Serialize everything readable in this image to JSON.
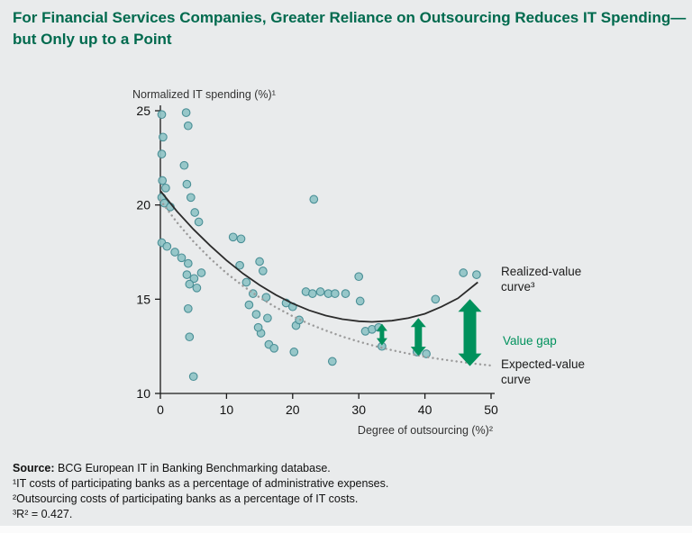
{
  "header": {
    "title": "For Financial Services Companies, Greater Reliance on Outsourcing Reduces IT Spending—but Only up to a Point"
  },
  "chart_data": {
    "type": "scatter",
    "xlabel": "Degree of outsourcing (%)²",
    "ylabel": "Normalized IT spending (%)¹",
    "xlim": [
      0,
      50
    ],
    "ylim": [
      10,
      25
    ],
    "x_ticks": [
      0,
      10,
      20,
      30,
      40,
      50
    ],
    "y_ticks": [
      10,
      15,
      20,
      25
    ],
    "grid": false,
    "colors": {
      "point_fill": "#8fc3c6",
      "point_stroke": "#4a8f96",
      "realized": "#2b2b2b",
      "expected": "#9b9b9b",
      "arrow": "#00915c",
      "title_green": "#006a4e"
    },
    "points": [
      [
        0.2,
        24.8
      ],
      [
        0.4,
        23.6
      ],
      [
        3.9,
        24.9
      ],
      [
        4.2,
        24.2
      ],
      [
        0.2,
        22.7
      ],
      [
        3.6,
        22.1
      ],
      [
        0.3,
        21.3
      ],
      [
        0.8,
        20.9
      ],
      [
        0.2,
        20.4
      ],
      [
        0.6,
        20.1
      ],
      [
        1.5,
        19.9
      ],
      [
        4.0,
        21.1
      ],
      [
        4.6,
        20.4
      ],
      [
        5.2,
        19.6
      ],
      [
        5.8,
        19.1
      ],
      [
        0.2,
        18.0
      ],
      [
        1.0,
        17.8
      ],
      [
        2.2,
        17.5
      ],
      [
        3.2,
        17.2
      ],
      [
        4.2,
        16.9
      ],
      [
        4.0,
        16.3
      ],
      [
        5.1,
        16.1
      ],
      [
        6.2,
        16.4
      ],
      [
        4.4,
        15.8
      ],
      [
        5.5,
        15.6
      ],
      [
        4.2,
        14.5
      ],
      [
        4.4,
        13.0
      ],
      [
        5.0,
        10.9
      ],
      [
        11.0,
        18.3
      ],
      [
        12.2,
        18.2
      ],
      [
        12.0,
        16.8
      ],
      [
        13.0,
        15.9
      ],
      [
        14.0,
        15.3
      ],
      [
        13.4,
        14.7
      ],
      [
        14.5,
        14.2
      ],
      [
        15.0,
        17.0
      ],
      [
        15.5,
        16.5
      ],
      [
        16.0,
        15.1
      ],
      [
        16.2,
        14.0
      ],
      [
        15.2,
        13.2
      ],
      [
        16.4,
        12.6
      ],
      [
        17.2,
        12.4
      ],
      [
        14.8,
        13.5
      ],
      [
        19.0,
        14.8
      ],
      [
        20.0,
        14.6
      ],
      [
        20.5,
        13.6
      ],
      [
        21.0,
        13.9
      ],
      [
        22.0,
        15.4
      ],
      [
        23.2,
        20.3
      ],
      [
        23.0,
        15.3
      ],
      [
        24.2,
        15.4
      ],
      [
        25.4,
        15.3
      ],
      [
        20.2,
        12.2
      ],
      [
        26.0,
        11.7
      ],
      [
        26.4,
        15.3
      ],
      [
        28.0,
        15.3
      ],
      [
        30.0,
        16.2
      ],
      [
        30.2,
        14.9
      ],
      [
        31.0,
        13.3
      ],
      [
        32.0,
        13.4
      ],
      [
        33.0,
        13.5
      ],
      [
        33.5,
        12.5
      ],
      [
        38.8,
        12.2
      ],
      [
        40.2,
        12.1
      ],
      [
        41.6,
        15.0
      ],
      [
        45.8,
        16.4
      ],
      [
        47.8,
        16.3
      ]
    ],
    "realized_curve": {
      "label": "Realized-value curve³",
      "points": [
        [
          0,
          20.75
        ],
        [
          2.5,
          19.67
        ],
        [
          5,
          18.71
        ],
        [
          7.5,
          17.85
        ],
        [
          10,
          17.06
        ],
        [
          12.5,
          16.36
        ],
        [
          15,
          15.75
        ],
        [
          17.5,
          15.22
        ],
        [
          20,
          14.77
        ],
        [
          22.5,
          14.41
        ],
        [
          25,
          14.13
        ],
        [
          27.5,
          13.94
        ],
        [
          30,
          13.83
        ],
        [
          32,
          13.8
        ],
        [
          35,
          13.86
        ],
        [
          37.5,
          14.0
        ],
        [
          40,
          14.23
        ],
        [
          42.5,
          14.6
        ],
        [
          45,
          15.05
        ],
        [
          48,
          15.9
        ]
      ]
    },
    "expected_curve": {
      "label": "Expected-value curve",
      "points": [
        [
          0,
          20.25
        ],
        [
          2.5,
          19.08
        ],
        [
          5,
          18.06
        ],
        [
          7.5,
          17.17
        ],
        [
          10,
          16.38
        ],
        [
          12.5,
          15.7
        ],
        [
          15,
          15.09
        ],
        [
          17.5,
          14.56
        ],
        [
          20,
          14.1
        ],
        [
          22.5,
          13.69
        ],
        [
          25,
          13.34
        ],
        [
          27.5,
          13.02
        ],
        [
          30,
          12.75
        ],
        [
          32.5,
          12.51
        ],
        [
          35,
          12.3
        ],
        [
          37.5,
          12.11
        ],
        [
          40,
          11.95
        ],
        [
          42.5,
          11.81
        ],
        [
          45,
          11.69
        ],
        [
          47.5,
          11.58
        ],
        [
          50,
          11.48
        ]
      ]
    },
    "value_gap": {
      "label": "Value gap",
      "arrows": [
        {
          "x": 33.5,
          "y_top": 13.7,
          "y_bottom": 12.55,
          "size": "small"
        },
        {
          "x": 39.0,
          "y_top": 14.0,
          "y_bottom": 12.0,
          "size": "medium"
        },
        {
          "x": 46.8,
          "y_top": 15.0,
          "y_bottom": 11.45,
          "size": "large"
        }
      ]
    }
  },
  "footer": {
    "source_label": "Source:",
    "source_text": " BCG European IT in Banking Benchmarking database.",
    "notes": [
      "¹IT costs of participating banks as a percentage of administrative expenses.",
      "²Outsourcing costs of participating banks as a percentage of IT costs.",
      "³R² = 0.427."
    ]
  }
}
